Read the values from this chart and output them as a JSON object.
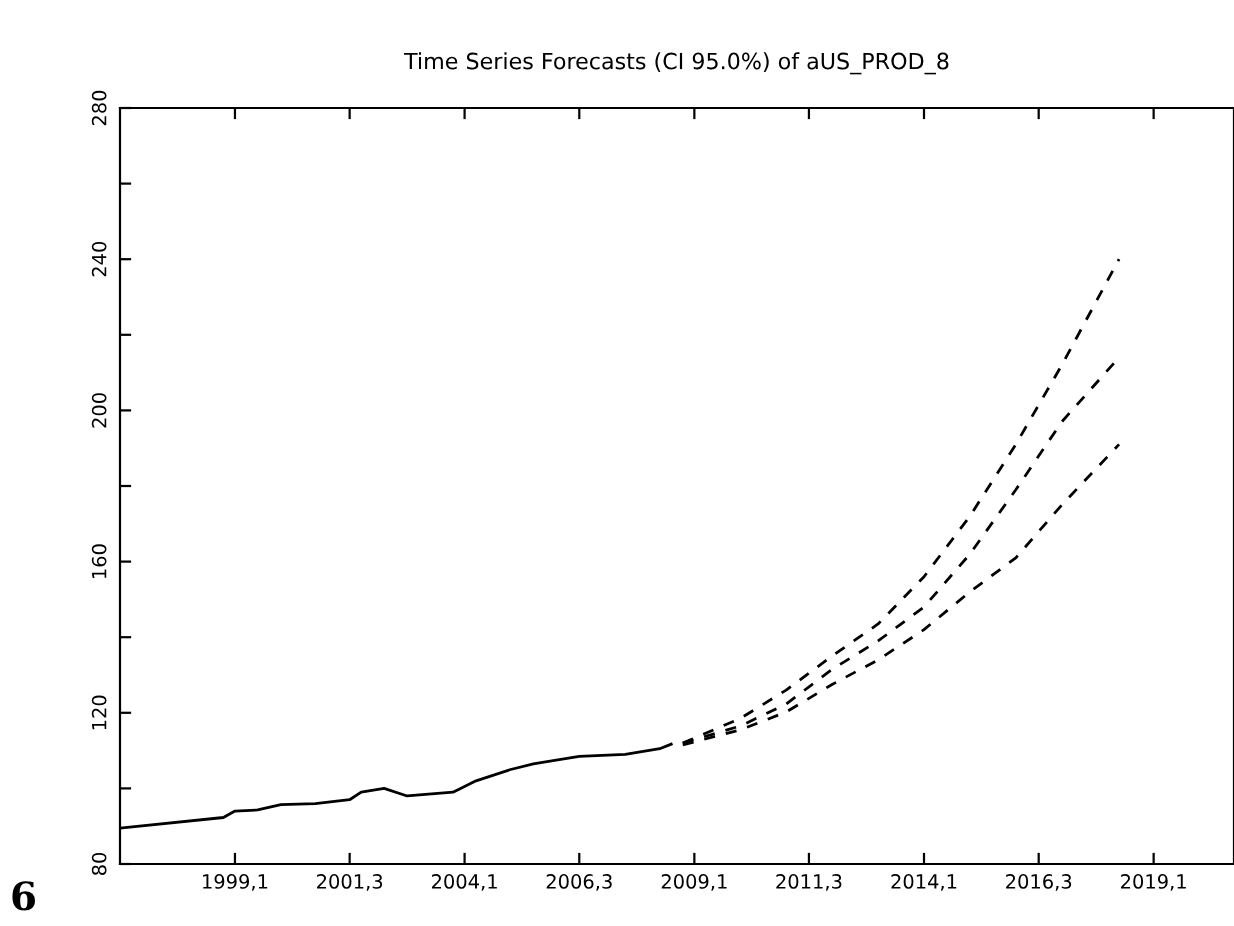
{
  "chart_data": {
    "type": "line",
    "title": "Time Series Forecasts (CI 95.0%) of aUS_PROD_8",
    "xlim": [
      "1996-07",
      "2020-10"
    ],
    "ylim": [
      80,
      280
    ],
    "xticks": [
      {
        "value": "1999-01",
        "label": "1999,1"
      },
      {
        "value": "2001-07",
        "label": "2001,3"
      },
      {
        "value": "2004-01",
        "label": "2004,1"
      },
      {
        "value": "2006-07",
        "label": "2006,3"
      },
      {
        "value": "2009-01",
        "label": "2009,1"
      },
      {
        "value": "2011-07",
        "label": "2011,3"
      },
      {
        "value": "2014-01",
        "label": "2014,1"
      },
      {
        "value": "2016-07",
        "label": "2016,3"
      },
      {
        "value": "2019-01",
        "label": "2019,1"
      }
    ],
    "yticks": [
      80,
      {
        "value": 100,
        "label": null
      },
      120,
      {
        "value": 140,
        "label": null
      },
      160,
      {
        "value": 180,
        "label": null
      },
      200,
      {
        "value": 220,
        "label": null
      },
      240,
      {
        "value": 260,
        "label": null
      },
      280
    ],
    "grid": false,
    "marker": "none",
    "annotations": [
      "6"
    ],
    "series": [
      {
        "color": "#000000",
        "line_style": "solid",
        "x": [
          "1996-07",
          "1998-10",
          "1999-01",
          "1999-07",
          "2000-01",
          "2000-10",
          "2001-07",
          "2001-10",
          "2002-04",
          "2002-10",
          "2003-10",
          "2004-04",
          "2005-01",
          "2005-07",
          "2006-07",
          "2007-07",
          "2008-04",
          "2008-07"
        ],
        "values": [
          89.5,
          92.3,
          94,
          94.3,
          95.7,
          96,
          97,
          99,
          100,
          98,
          99,
          102,
          105,
          106.5,
          108.5,
          109,
          110.5,
          111.7
        ]
      },
      {
        "color": "#000000",
        "line_style": "dashed",
        "x": [
          "2008-10",
          "2010-01",
          "2011-01",
          "2012-01",
          "2013-01",
          "2014-01",
          "2015-01",
          "2016-01",
          "2017-01",
          "2018-04"
        ],
        "values": [
          112,
          118.5,
          126,
          135,
          143.5,
          156,
          172,
          191,
          212,
          240
        ]
      },
      {
        "color": "#000000",
        "line_style": "dashed",
        "x": [
          "2008-10",
          "2010-01",
          "2011-01",
          "2012-01",
          "2013-01",
          "2014-01",
          "2015-01",
          "2016-01",
          "2017-01",
          "2018-04"
        ],
        "values": [
          112,
          116.5,
          122.3,
          131.5,
          139,
          148,
          162,
          179,
          197,
          214
        ]
      },
      {
        "color": "#000000",
        "line_style": "dashed",
        "x": [
          "2008-10",
          "2010-01",
          "2011-01",
          "2012-01",
          "2013-01",
          "2014-01",
          "2015-01",
          "2016-01",
          "2017-01",
          "2018-04"
        ],
        "values": [
          111.5,
          115.5,
          120.2,
          127.5,
          134,
          142,
          152,
          161,
          175,
          191
        ]
      }
    ]
  }
}
